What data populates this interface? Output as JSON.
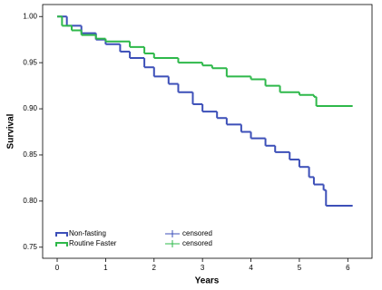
{
  "chart_data": {
    "type": "step",
    "xlabel": "Years",
    "ylabel": "Survival",
    "xlim": [
      -0.3,
      6.5
    ],
    "ylim": [
      0.738,
      1.013
    ],
    "xticks": [
      0,
      1,
      2,
      3,
      4,
      5,
      6
    ],
    "yticks": [
      0.75,
      {
        "value": 0.8,
        "label": "0.80"
      },
      0.85,
      {
        "value": 0.9,
        "label": "0.90"
      },
      0.95,
      {
        "value": 1,
        "label": "1.00"
      }
    ],
    "series": [
      {
        "name": "Non-fasting",
        "censor_label": "censored",
        "color": "#3c4fb8",
        "x": [
          0,
          0.2,
          0.5,
          0.8,
          1,
          1.3,
          1.5,
          1.8,
          2,
          2.3,
          2.5,
          2.8,
          3,
          3.3,
          3.5,
          3.8,
          4,
          4.3,
          4.5,
          4.8,
          5,
          5.2,
          5.3,
          5.5,
          5.55,
          6.1
        ],
        "values": [
          1,
          0.99,
          0.982,
          0.975,
          0.97,
          0.962,
          0.955,
          0.945,
          0.935,
          0.927,
          0.918,
          0.905,
          0.897,
          0.89,
          0.883,
          0.875,
          0.868,
          0.86,
          0.853,
          0.845,
          0.837,
          0.826,
          0.818,
          0.812,
          0.795,
          0.795
        ]
      },
      {
        "name": "Routine Faster",
        "censor_label": "censored",
        "color": "#2eb84a",
        "x": [
          0,
          0.1,
          0.3,
          0.5,
          0.8,
          1,
          1.5,
          1.8,
          2,
          2.5,
          3,
          3.2,
          3.5,
          4,
          4.3,
          4.6,
          5,
          5.3,
          5.35,
          6.1
        ],
        "values": [
          1,
          0.99,
          0.985,
          0.98,
          0.976,
          0.973,
          0.967,
          0.96,
          0.955,
          0.95,
          0.947,
          0.944,
          0.935,
          0.932,
          0.925,
          0.918,
          0.915,
          0.913,
          0.903,
          0.903
        ]
      }
    ]
  }
}
